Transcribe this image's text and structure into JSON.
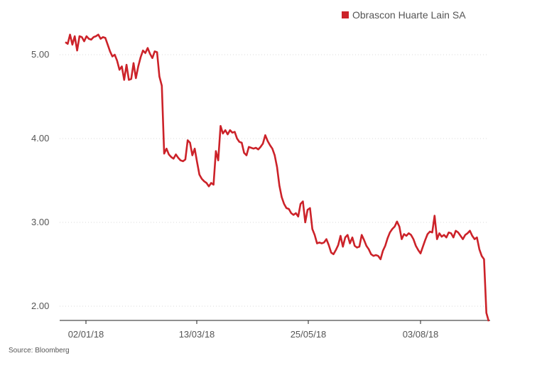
{
  "chart_data": {
    "type": "line",
    "legend": {
      "position": "top-right"
    },
    "series": [
      {
        "name": "Obrascon Huarte Lain SA",
        "color": "#cc2229",
        "y": [
          5.15,
          5.13,
          5.24,
          5.12,
          5.22,
          5.05,
          5.22,
          5.21,
          5.16,
          5.22,
          5.19,
          5.18,
          5.21,
          5.22,
          5.24,
          5.19,
          5.21,
          5.2,
          5.12,
          5.04,
          4.98,
          5.0,
          4.93,
          4.82,
          4.86,
          4.7,
          4.88,
          4.7,
          4.71,
          4.9,
          4.72,
          4.86,
          4.97,
          5.05,
          5.02,
          5.08,
          5.01,
          4.96,
          5.04,
          5.03,
          4.74,
          4.63,
          3.82,
          3.88,
          3.81,
          3.78,
          3.76,
          3.81,
          3.77,
          3.74,
          3.73,
          3.75,
          3.98,
          3.95,
          3.8,
          3.88,
          3.72,
          3.57,
          3.52,
          3.49,
          3.47,
          3.43,
          3.47,
          3.45,
          3.85,
          3.74,
          4.15,
          4.06,
          4.1,
          4.05,
          4.1,
          4.07,
          4.08,
          4.0,
          3.96,
          3.95,
          3.83,
          3.8,
          3.9,
          3.89,
          3.88,
          3.89,
          3.87,
          3.9,
          3.94,
          4.04,
          3.97,
          3.92,
          3.88,
          3.8,
          3.66,
          3.44,
          3.3,
          3.22,
          3.17,
          3.16,
          3.11,
          3.09,
          3.11,
          3.07,
          3.22,
          3.25,
          3.0,
          3.15,
          3.17,
          2.92,
          2.85,
          2.75,
          2.76,
          2.75,
          2.76,
          2.8,
          2.73,
          2.64,
          2.62,
          2.67,
          2.73,
          2.84,
          2.71,
          2.82,
          2.85,
          2.75,
          2.82,
          2.72,
          2.7,
          2.71,
          2.85,
          2.79,
          2.72,
          2.68,
          2.62,
          2.6,
          2.61,
          2.6,
          2.56,
          2.66,
          2.72,
          2.81,
          2.88,
          2.92,
          2.95,
          3.01,
          2.95,
          2.8,
          2.86,
          2.84,
          2.87,
          2.85,
          2.8,
          2.72,
          2.67,
          2.63,
          2.71,
          2.79,
          2.86,
          2.89,
          2.88,
          3.08,
          2.8,
          2.87,
          2.83,
          2.85,
          2.82,
          2.88,
          2.87,
          2.82,
          2.9,
          2.88,
          2.84,
          2.8,
          2.85,
          2.87,
          2.9,
          2.84,
          2.8,
          2.82,
          2.68,
          2.6,
          2.56,
          1.92,
          1.82
        ]
      }
    ],
    "x_ticks": [
      "02/01/18",
      "13/03/18",
      "25/05/18",
      "03/08/18"
    ],
    "y_ticks": [
      "2.00",
      "3.00",
      "4.00",
      "5.00"
    ],
    "y_tick_values": [
      2.0,
      3.0,
      4.0,
      5.0
    ],
    "ylim": [
      1.85,
      5.45
    ],
    "grid": true,
    "source": "Source: Bloomberg"
  }
}
